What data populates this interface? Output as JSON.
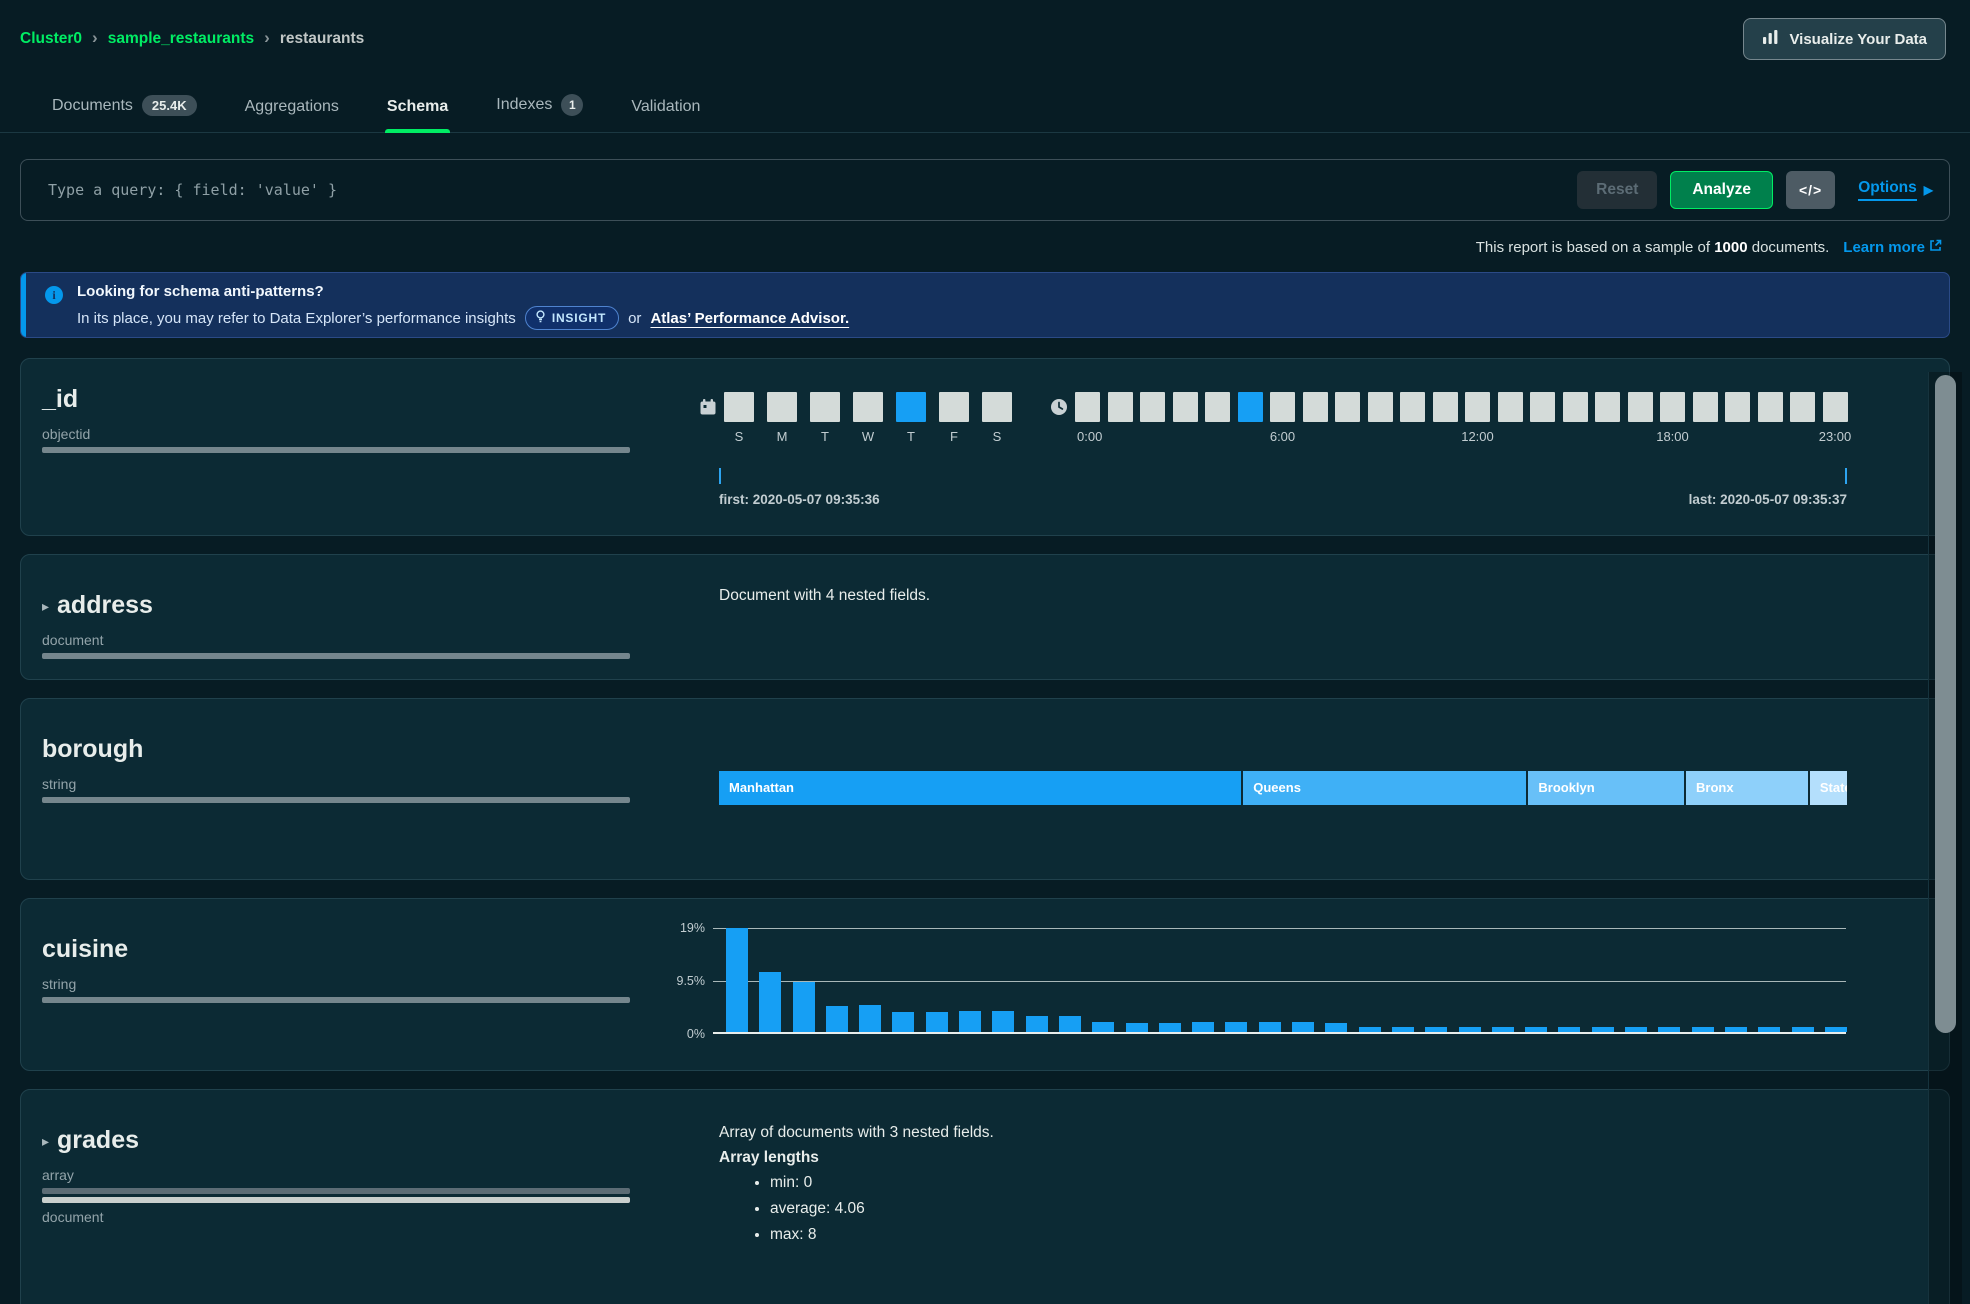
{
  "breadcrumb": {
    "items": [
      "Cluster0",
      "sample_restaurants",
      "restaurants"
    ]
  },
  "toolbar": {
    "visualize_label": "Visualize Your Data"
  },
  "tabs": [
    {
      "label": "Documents",
      "badge": "25.4K"
    },
    {
      "label": "Aggregations"
    },
    {
      "label": "Schema"
    },
    {
      "label": "Indexes",
      "badge": "1"
    },
    {
      "label": "Validation"
    }
  ],
  "query_bar": {
    "placeholder": "Type a query: { field: 'value' }",
    "reset_label": "Reset",
    "analyze_label": "Analyze",
    "code_toggle": "</>",
    "options_label": "Options"
  },
  "report_note": {
    "text_before": "This report is based on a sample of",
    "count": "1000",
    "text_after": "documents.",
    "link_label": "Learn more"
  },
  "banner": {
    "title": "Looking for schema anti-patterns?",
    "body_before": "In its place, you may refer to Data Explorer’s performance insights",
    "insight_label": "INSIGHT",
    "conjunction": "or",
    "link_label": "Atlas’ Performance Advisor."
  },
  "fields": {
    "_id": {
      "name": "_id",
      "type": "objectid",
      "weekday_histogram": {
        "labels": [
          "S",
          "M",
          "T",
          "W",
          "T",
          "F",
          "S"
        ],
        "highlight_index": 4
      },
      "hour_histogram": {
        "block_count": 24,
        "highlight_index": 5,
        "ticks": [
          {
            "index": 0,
            "label": "0:00"
          },
          {
            "index": 6,
            "label": "6:00"
          },
          {
            "index": 12,
            "label": "12:00"
          },
          {
            "index": 18,
            "label": "18:00"
          },
          {
            "index": 23,
            "label": "23:00"
          }
        ]
      },
      "first_label": "first: 2020-05-07 09:35:36",
      "last_label": "last: 2020-05-07 09:35:37"
    },
    "address": {
      "name": "address",
      "type": "document",
      "description": "Document with 4 nested fields."
    },
    "borough": {
      "name": "borough",
      "type": "string",
      "value_bar": {
        "segments": [
          {
            "label": "Manhattan",
            "pct": 46.3,
            "color": "#169ff4"
          },
          {
            "label": "Queens",
            "pct": 25.1,
            "color": "#3fb0f6"
          },
          {
            "label": "Brooklyn",
            "pct": 13.8,
            "color": "#68c0f8"
          },
          {
            "label": "Bronx",
            "pct": 10.8,
            "color": "#8ed0fa"
          },
          {
            "label": "Staten Island",
            "pct": 6.0,
            "color": "#b4dffc"
          }
        ]
      }
    },
    "cuisine": {
      "name": "cuisine",
      "type": "string",
      "histogram": {
        "y_ticks": [
          "19%",
          "9.5%",
          "0%"
        ],
        "max_pct": 19,
        "values_pct": [
          19,
          11,
          9.2,
          4.8,
          4.9,
          3.7,
          3.7,
          3.9,
          3.9,
          2.9,
          2.9,
          1.9,
          1.7,
          1.7,
          1.8,
          1.8,
          1.8,
          1.8,
          1.7,
          1.0,
          1.0,
          1.0,
          1.0,
          1.0,
          1.0,
          1.0,
          1.0,
          1.0,
          1.0,
          0.9,
          0.9,
          0.9,
          0.9,
          0.9
        ]
      }
    },
    "grades": {
      "name": "grades",
      "types": [
        "array",
        "document"
      ],
      "description": "Array of documents with 3 nested fields.",
      "array_lengths_title": "Array lengths",
      "stats": [
        "min: 0",
        "average: 4.06",
        "max: 8"
      ]
    }
  },
  "colors": {
    "accent_green": "#00ed64",
    "accent_blue": "#0498ec",
    "histogram_blue": "#169ff4"
  }
}
